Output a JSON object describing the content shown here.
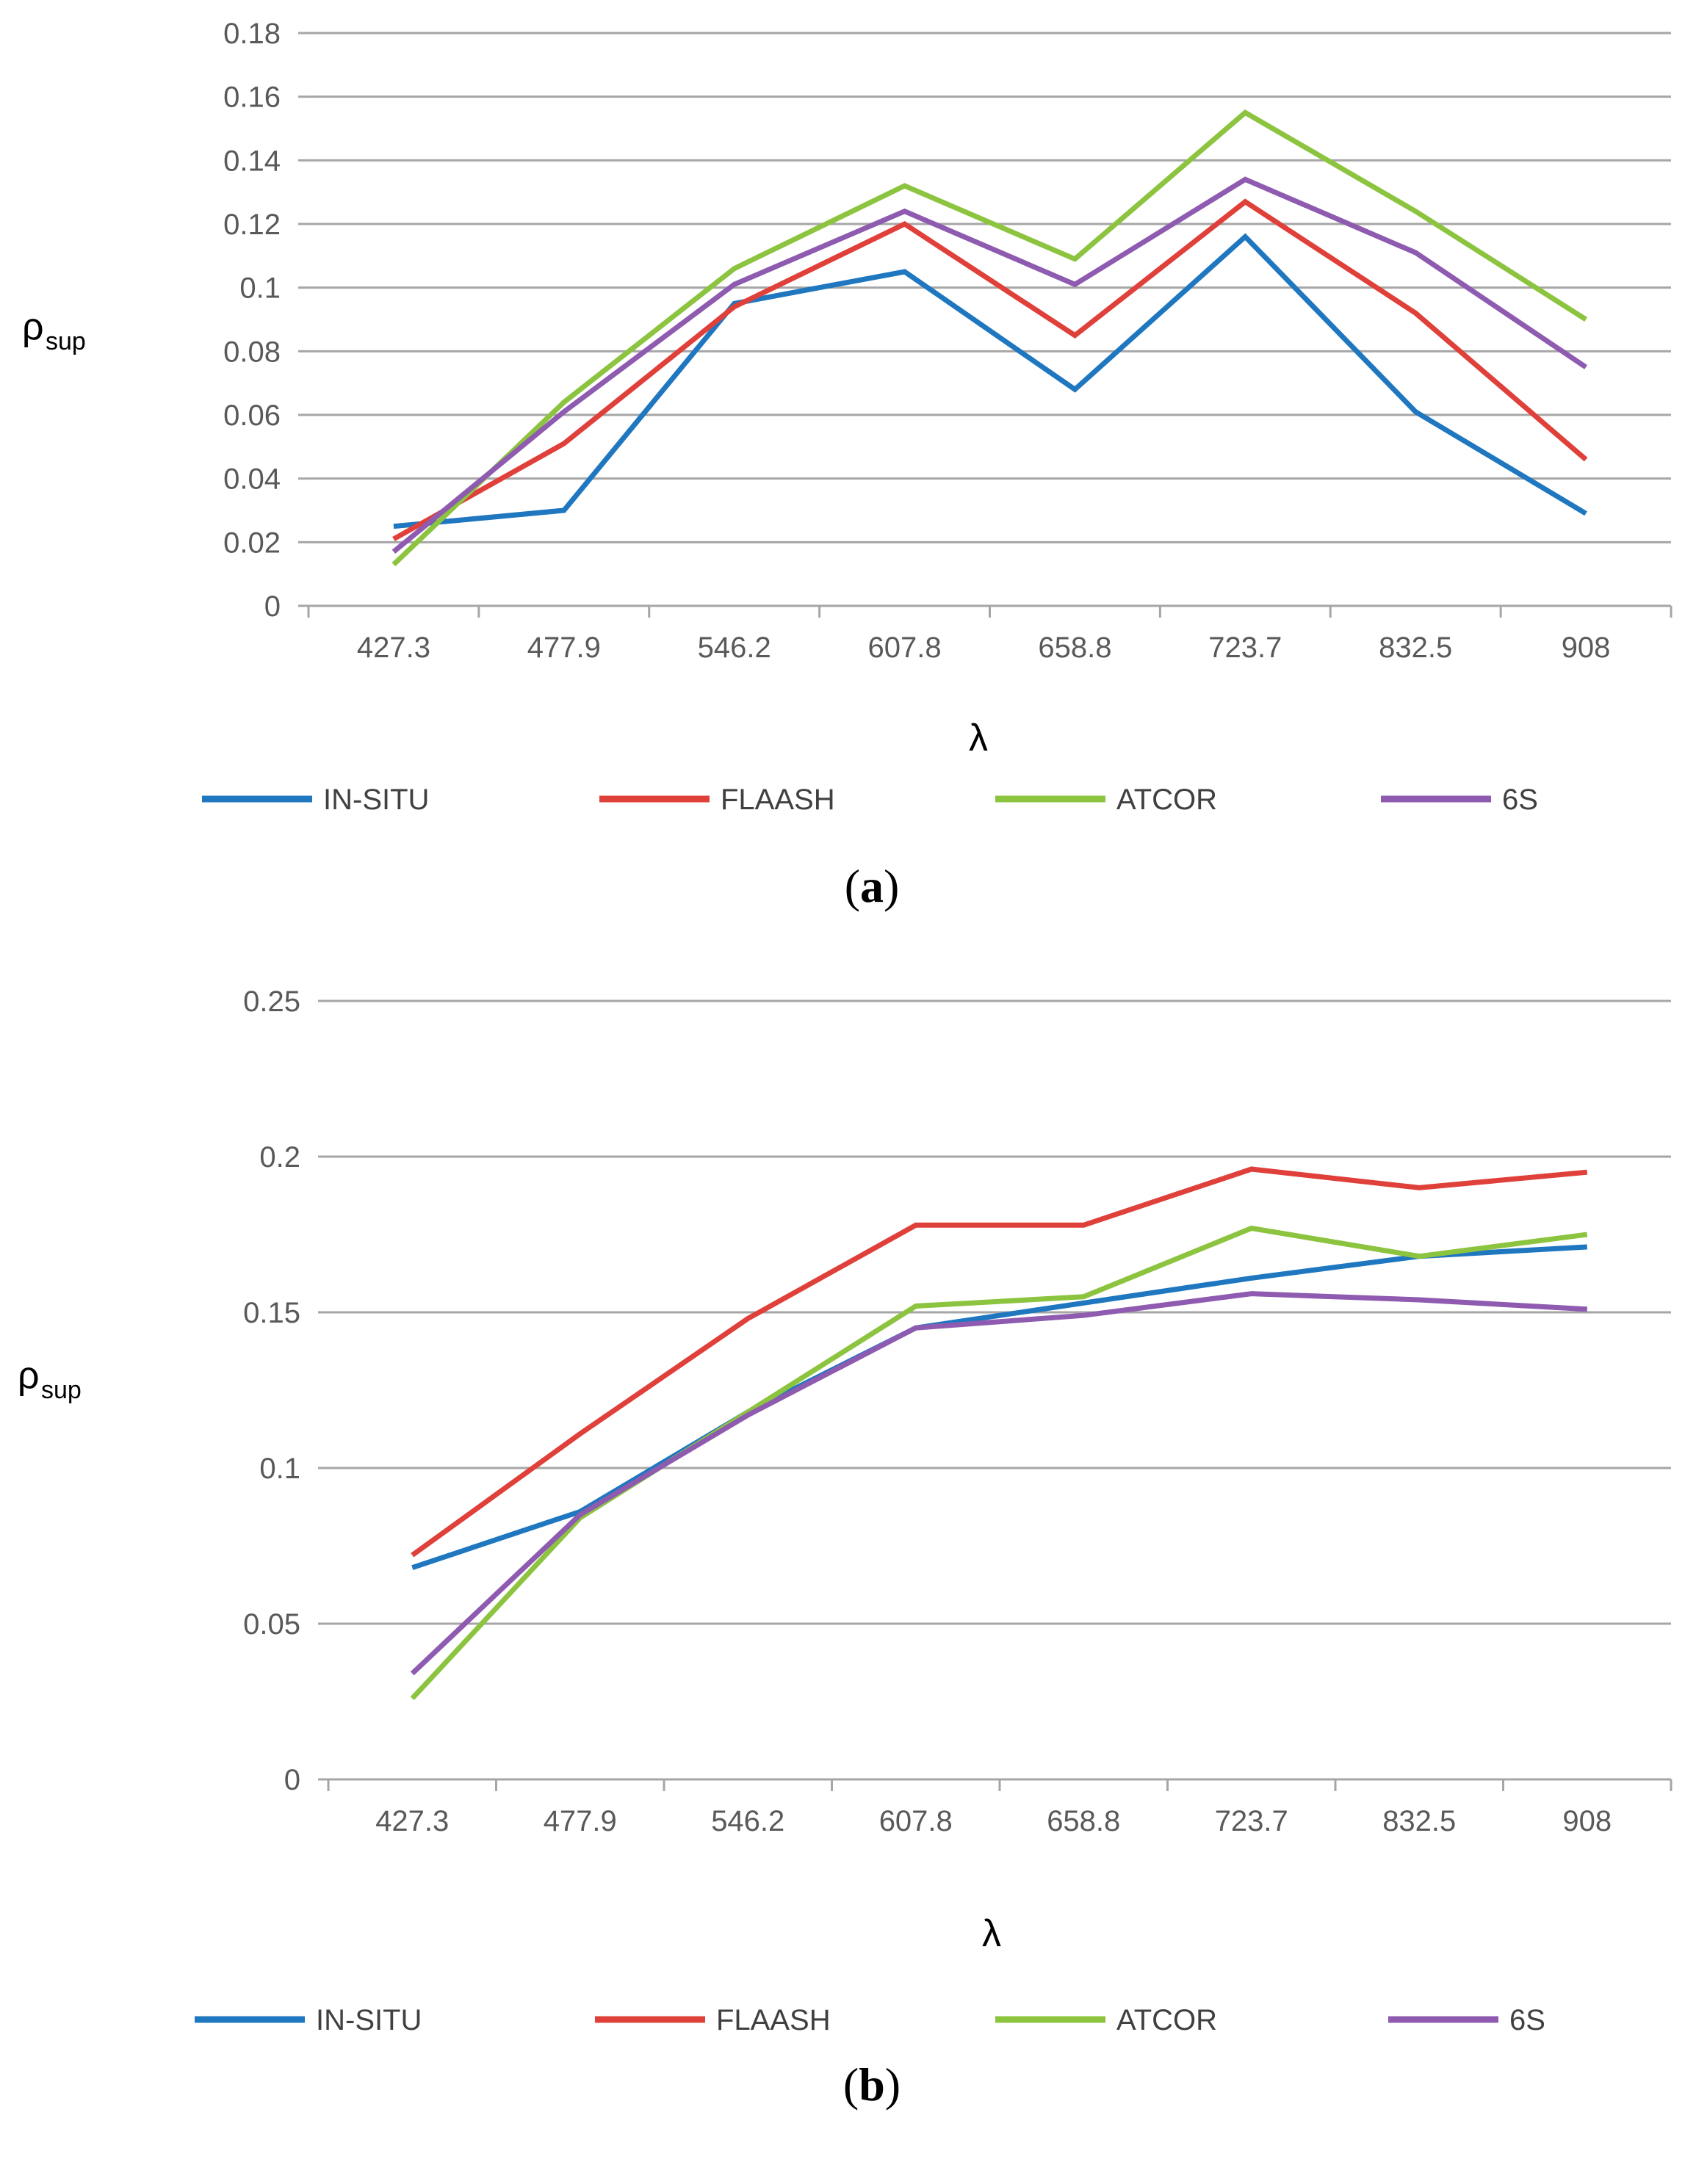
{
  "chart_data": [
    {
      "type": "line",
      "panel_label": "a",
      "categories": [
        "427.3",
        "477.9",
        "546.2",
        "607.8",
        "658.8",
        "723.7",
        "832.5",
        "908"
      ],
      "xlabel": "λ",
      "ylabel": "ρ",
      "ylabel_sub": "sup",
      "ylim": [
        0,
        0.18
      ],
      "yticks": [
        "0",
        "0.02",
        "0.04",
        "0.06",
        "0.08",
        "0.1",
        "0.12",
        "0.14",
        "0.16",
        "0.18"
      ],
      "grid": true,
      "legend_position": "bottom",
      "series": [
        {
          "name": "IN-SITU",
          "color": "#1f77c0",
          "values": [
            0.025,
            0.03,
            0.095,
            0.105,
            0.068,
            0.116,
            0.061,
            0.029
          ]
        },
        {
          "name": "FLAASH",
          "color": "#e0403a",
          "values": [
            0.021,
            0.051,
            0.094,
            0.12,
            0.085,
            0.127,
            0.092,
            0.046
          ]
        },
        {
          "name": "ATCOR",
          "color": "#8cc43f",
          "values": [
            0.013,
            0.064,
            0.106,
            0.132,
            0.109,
            0.155,
            0.124,
            0.09
          ]
        },
        {
          "name": "6S",
          "color": "#8e5bb0",
          "values": [
            0.017,
            0.061,
            0.101,
            0.124,
            0.101,
            0.134,
            0.111,
            0.075
          ]
        }
      ]
    },
    {
      "type": "line",
      "panel_label": "b",
      "categories": [
        "427.3",
        "477.9",
        "546.2",
        "607.8",
        "658.8",
        "723.7",
        "832.5",
        "908"
      ],
      "xlabel": "λ",
      "ylabel": "ρ",
      "ylabel_sub": "sup",
      "ylim": [
        0,
        0.25
      ],
      "yticks": [
        "0",
        "0.05",
        "0.1",
        "0.15",
        "0.2",
        "0.25"
      ],
      "grid": true,
      "legend_position": "bottom",
      "series": [
        {
          "name": "IN-SITU",
          "color": "#1f77c0",
          "values": [
            0.068,
            0.086,
            0.118,
            0.145,
            0.153,
            0.161,
            0.168,
            0.171
          ]
        },
        {
          "name": "FLAASH",
          "color": "#e0403a",
          "values": [
            0.072,
            0.111,
            0.148,
            0.178,
            0.178,
            0.196,
            0.19,
            0.195
          ]
        },
        {
          "name": "ATCOR",
          "color": "#8cc43f",
          "values": [
            0.026,
            0.084,
            0.118,
            0.152,
            0.155,
            0.177,
            0.168,
            0.175
          ]
        },
        {
          "name": "6S",
          "color": "#8e5bb0",
          "values": [
            0.034,
            0.085,
            0.117,
            0.145,
            0.149,
            0.156,
            0.154,
            0.151
          ]
        }
      ]
    }
  ]
}
